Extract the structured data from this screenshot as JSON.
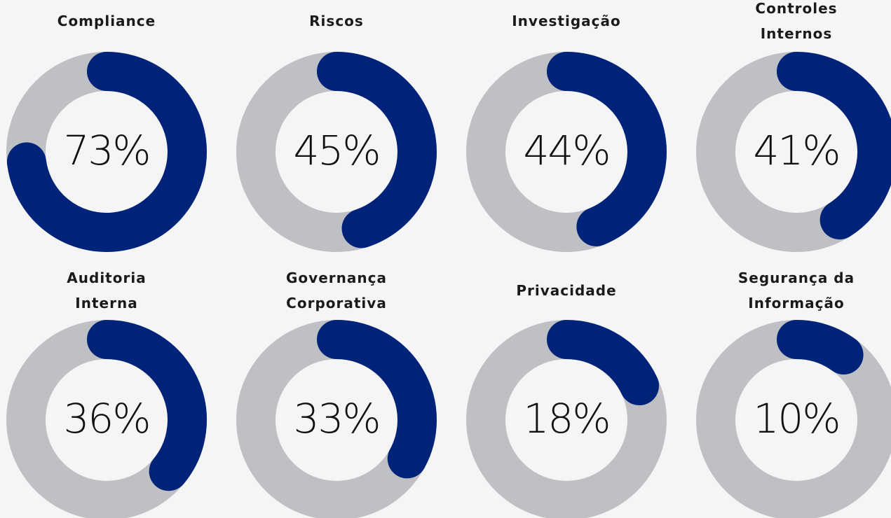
{
  "chart_data": [
    {
      "type": "donut",
      "title": "Compliance",
      "values": [
        73
      ],
      "value_labels": [
        "73%"
      ],
      "color": "#00237a",
      "track_color": "#bfc0c4"
    },
    {
      "type": "donut",
      "title": "Riscos",
      "values": [
        45
      ],
      "value_labels": [
        "45%"
      ],
      "color": "#00237a",
      "track_color": "#bfc0c4"
    },
    {
      "type": "donut",
      "title": "Investigação",
      "values": [
        44
      ],
      "value_labels": [
        "44%"
      ],
      "color": "#00237a",
      "track_color": "#bfc0c4"
    },
    {
      "type": "donut",
      "title": "Controles Internos",
      "values": [
        41
      ],
      "value_labels": [
        "41%"
      ],
      "color": "#00237a",
      "track_color": "#bfc0c4"
    },
    {
      "type": "donut",
      "title": "Auditoria Interna",
      "values": [
        36
      ],
      "value_labels": [
        "36%"
      ],
      "color": "#00237a",
      "track_color": "#bfc0c4"
    },
    {
      "type": "donut",
      "title": "Governança Corporativa",
      "values": [
        33
      ],
      "value_labels": [
        "33%"
      ],
      "color": "#00237a",
      "track_color": "#bfc0c4"
    },
    {
      "type": "donut",
      "title": "Privacidade",
      "values": [
        18
      ],
      "value_labels": [
        "18%"
      ],
      "color": "#00237a",
      "track_color": "#bfc0c4"
    },
    {
      "type": "donut",
      "title": "Segurança da Informação",
      "values": [
        10
      ],
      "value_labels": [
        "10%"
      ],
      "color": "#00237a",
      "track_color": "#bfc0c4"
    }
  ]
}
